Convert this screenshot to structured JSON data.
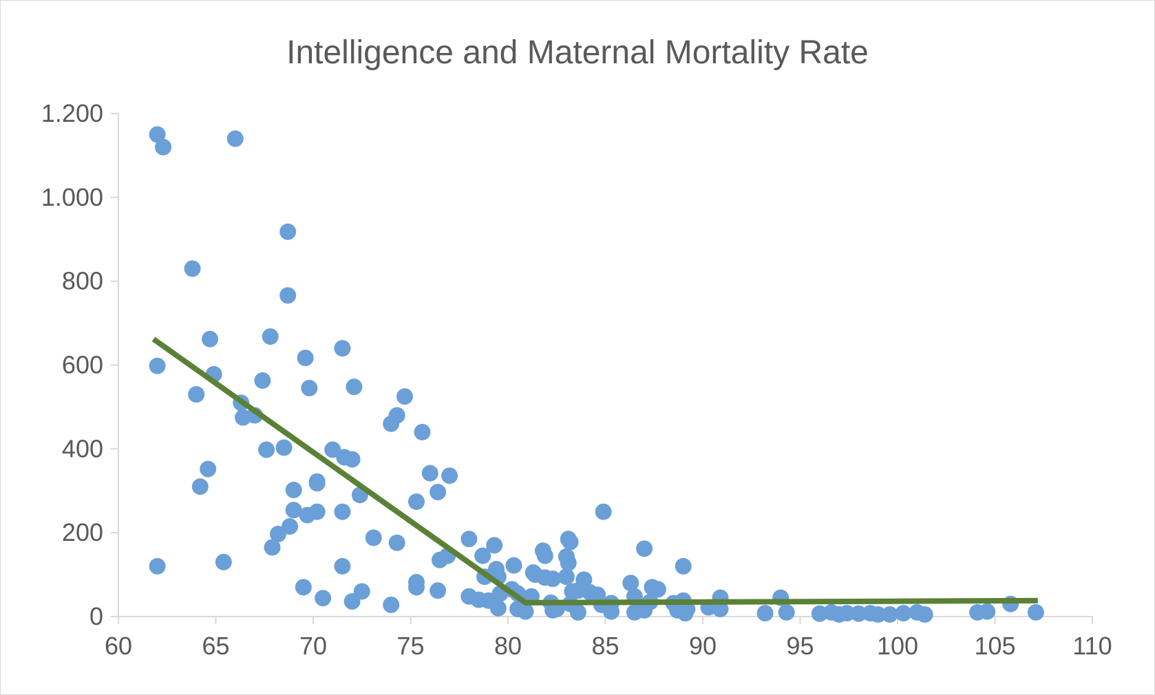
{
  "chart_data": {
    "type": "scatter",
    "title": "Intelligence and Maternal Mortality Rate",
    "xlabel": "",
    "ylabel": "",
    "xlim": [
      60,
      110
    ],
    "ylim": [
      0,
      1200
    ],
    "x_ticks": [
      60,
      65,
      70,
      75,
      80,
      85,
      90,
      95,
      100,
      105,
      110
    ],
    "x_tick_labels": [
      "60",
      "65",
      "70",
      "75",
      "80",
      "85",
      "90",
      "95",
      "100",
      "105",
      "110"
    ],
    "y_ticks": [
      0,
      200,
      400,
      600,
      800,
      1000,
      1200
    ],
    "y_tick_labels": [
      "0",
      "200",
      "400",
      "600",
      "800",
      "1.000",
      "1.200"
    ],
    "grid": false,
    "legend": "none",
    "series": [
      {
        "name": "Countries",
        "color": "#6a9fd8",
        "points": [
          [
            62.0,
            1150
          ],
          [
            62.3,
            1120
          ],
          [
            66.0,
            1140
          ],
          [
            68.7,
            918
          ],
          [
            63.8,
            830
          ],
          [
            68.7,
            766
          ],
          [
            67.8,
            668
          ],
          [
            64.7,
            662
          ],
          [
            71.5,
            640
          ],
          [
            69.6,
            617
          ],
          [
            62.0,
            598
          ],
          [
            64.9,
            578
          ],
          [
            74.7,
            525
          ],
          [
            67.4,
            563
          ],
          [
            69.8,
            545
          ],
          [
            72.1,
            548
          ],
          [
            64.0,
            530
          ],
          [
            66.3,
            510
          ],
          [
            67.0,
            480
          ],
          [
            66.4,
            475
          ],
          [
            74.3,
            480
          ],
          [
            74.0,
            460
          ],
          [
            75.6,
            440
          ],
          [
            67.6,
            398
          ],
          [
            68.5,
            403
          ],
          [
            71.0,
            398
          ],
          [
            71.6,
            380
          ],
          [
            72.0,
            375
          ],
          [
            76.0,
            342
          ],
          [
            77.0,
            336
          ],
          [
            64.6,
            352
          ],
          [
            70.2,
            322
          ],
          [
            70.2,
            318
          ],
          [
            64.2,
            310
          ],
          [
            69.0,
            302
          ],
          [
            76.4,
            297
          ],
          [
            72.4,
            290
          ],
          [
            75.3,
            274
          ],
          [
            84.9,
            250
          ],
          [
            69.0,
            254
          ],
          [
            70.2,
            250
          ],
          [
            71.5,
            250
          ],
          [
            69.7,
            242
          ],
          [
            68.8,
            215
          ],
          [
            68.2,
            197
          ],
          [
            73.1,
            188
          ],
          [
            78.0,
            185
          ],
          [
            83.1,
            185
          ],
          [
            83.2,
            178
          ],
          [
            74.3,
            176
          ],
          [
            79.3,
            170
          ],
          [
            67.9,
            165
          ],
          [
            87.0,
            162
          ],
          [
            81.8,
            157
          ],
          [
            81.9,
            145
          ],
          [
            83.0,
            143
          ],
          [
            76.5,
            135
          ],
          [
            78.7,
            145
          ],
          [
            76.9,
            145
          ],
          [
            65.4,
            130
          ],
          [
            83.1,
            128
          ],
          [
            62.0,
            120
          ],
          [
            71.5,
            120
          ],
          [
            80.3,
            122
          ],
          [
            89.0,
            120
          ],
          [
            79.4,
            113
          ],
          [
            81.3,
            105
          ],
          [
            81.4,
            100
          ],
          [
            79.5,
            95
          ],
          [
            78.8,
            95
          ],
          [
            81.9,
            93
          ],
          [
            82.3,
            90
          ],
          [
            83.0,
            95
          ],
          [
            83.9,
            88
          ],
          [
            75.3,
            82
          ],
          [
            86.3,
            80
          ],
          [
            87.4,
            70
          ],
          [
            69.5,
            70
          ],
          [
            87.7,
            65
          ],
          [
            80.2,
            65
          ],
          [
            72.5,
            60
          ],
          [
            76.4,
            62
          ],
          [
            75.3,
            70
          ],
          [
            83.3,
            60
          ],
          [
            83.6,
            62
          ],
          [
            84.2,
            58
          ],
          [
            84.6,
            52
          ],
          [
            79.6,
            55
          ],
          [
            80.5,
            55
          ],
          [
            81.2,
            48
          ],
          [
            86.5,
            48
          ],
          [
            90.9,
            45
          ],
          [
            94.0,
            45
          ],
          [
            78.0,
            48
          ],
          [
            70.5,
            44
          ],
          [
            78.5,
            40
          ],
          [
            79.0,
            38
          ],
          [
            89.0,
            38
          ],
          [
            72.0,
            36
          ],
          [
            88.5,
            32
          ],
          [
            87.3,
            35
          ],
          [
            82.2,
            33
          ],
          [
            83.2,
            30
          ],
          [
            84.8,
            28
          ],
          [
            85.3,
            32
          ],
          [
            90.3,
            22
          ],
          [
            90.9,
            18
          ],
          [
            74.0,
            28
          ],
          [
            79.5,
            20
          ],
          [
            80.5,
            18
          ],
          [
            82.5,
            18
          ],
          [
            85.3,
            12
          ],
          [
            86.5,
            10
          ],
          [
            87.0,
            15
          ],
          [
            88.7,
            15
          ],
          [
            89.1,
            8
          ],
          [
            89.2,
            18
          ],
          [
            93.2,
            8
          ],
          [
            94.3,
            10
          ],
          [
            96.0,
            7
          ],
          [
            96.6,
            10
          ],
          [
            97.0,
            5
          ],
          [
            97.4,
            8
          ],
          [
            98.0,
            7
          ],
          [
            98.6,
            8
          ],
          [
            99.0,
            5
          ],
          [
            99.6,
            5
          ],
          [
            100.3,
            8
          ],
          [
            101.0,
            10
          ],
          [
            101.4,
            5
          ],
          [
            104.1,
            10
          ],
          [
            104.6,
            12
          ],
          [
            105.8,
            30
          ],
          [
            107.1,
            10
          ],
          [
            80.9,
            12
          ],
          [
            83.6,
            10
          ],
          [
            82.3,
            15
          ]
        ]
      },
      {
        "name": "Trend",
        "type": "line",
        "color": "#5a8136",
        "points": [
          [
            61.8,
            662
          ],
          [
            80.9,
            33
          ],
          [
            107.2,
            38
          ]
        ]
      }
    ]
  }
}
